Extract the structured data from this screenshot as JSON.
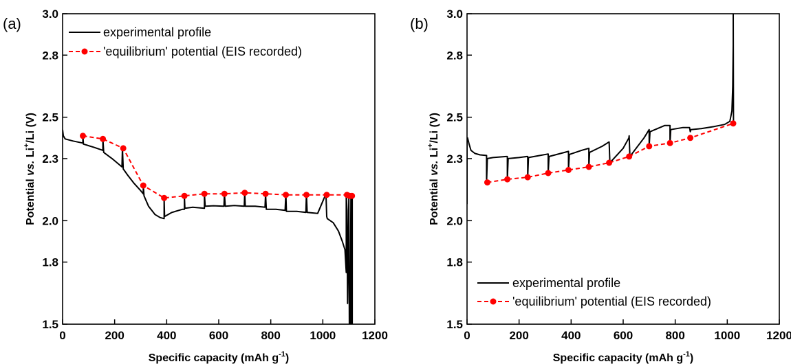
{
  "colors": {
    "experimental": "#000000",
    "equilibrium": "#ff0000",
    "axis": "#000000"
  },
  "chart_data": [
    {
      "panel": "(a)",
      "type": "line",
      "xlabel": "Specific capacity (mAh g",
      "xlabel_sup": "-1",
      "xlabel_end": ")",
      "ylabel_parts": [
        "Potential ",
        "vs.",
        " Li",
        "+",
        "/Li (V)"
      ],
      "xlim": [
        0,
        1200
      ],
      "ylim": [
        1.5,
        3.0
      ],
      "xticks": [
        0,
        200,
        400,
        600,
        800,
        1000,
        1200
      ],
      "yticks": [
        1.5,
        1.8,
        2.0,
        2.3,
        2.5,
        2.8,
        3.0
      ],
      "ytick_labels": [
        "1.5",
        "1.8",
        "2.0",
        "2.3",
        "2.5",
        "2.8",
        "3.0"
      ],
      "legend": {
        "position": "top-left"
      },
      "series": [
        {
          "name": "experimental profile",
          "style": "solid",
          "x": [
            0,
            3,
            10,
            40,
            78,
            78,
            80,
            120,
            155,
            155,
            158,
            190,
            228,
            230,
            233,
            250,
            275,
            300,
            310,
            310,
            313,
            330,
            355,
            375,
            390,
            390,
            392,
            420,
            460,
            468,
            468,
            470,
            500,
            545,
            545,
            548,
            580,
            620,
            622,
            625,
            660,
            698,
            700,
            702,
            740,
            778,
            780,
            783,
            820,
            855,
            858,
            860,
            900,
            935,
            937,
            940,
            980,
            1012,
            1015,
            1017,
            1040,
            1060,
            1075,
            1085,
            1090,
            1090,
            1093,
            1095,
            1100,
            1102,
            1104,
            1105,
            1108,
            1110,
            1112,
            1113,
            1113
          ],
          "y": [
            2.44,
            2.41,
            2.395,
            2.385,
            2.375,
            2.41,
            2.37,
            2.355,
            2.34,
            2.395,
            2.33,
            2.3,
            2.26,
            2.35,
            2.25,
            2.22,
            2.18,
            2.145,
            2.13,
            2.17,
            2.12,
            2.07,
            2.03,
            2.015,
            2.01,
            2.11,
            2.02,
            2.04,
            2.055,
            2.055,
            2.12,
            2.06,
            2.065,
            2.06,
            2.13,
            2.07,
            2.072,
            2.07,
            2.13,
            2.07,
            2.073,
            2.07,
            2.135,
            2.07,
            2.07,
            2.065,
            2.13,
            2.055,
            2.055,
            2.05,
            2.13,
            2.045,
            2.045,
            2.04,
            2.13,
            2.04,
            2.035,
            2.13,
            2.02,
            2.01,
            1.99,
            1.95,
            1.9,
            1.86,
            1.75,
            2.13,
            2.05,
            1.6,
            2.12,
            1.5,
            1.5,
            1.5,
            2.12,
            1.5,
            1.5,
            2.12,
            1.5
          ]
        },
        {
          "name": "'equilibrium' potential (EIS recorded)",
          "style": "dashed-markers",
          "x": [
            78,
            155,
            233,
            310,
            390,
            468,
            545,
            622,
            700,
            780,
            858,
            937,
            1015,
            1093,
            1103,
            1112
          ],
          "y": [
            2.41,
            2.395,
            2.35,
            2.17,
            2.11,
            2.12,
            2.13,
            2.13,
            2.135,
            2.13,
            2.125,
            2.125,
            2.125,
            2.125,
            2.12,
            2.12
          ]
        }
      ]
    },
    {
      "panel": "(b)",
      "type": "line",
      "xlabel": "Specific capacity (mAh g",
      "xlabel_sup": "-1",
      "xlabel_end": ")",
      "ylabel_parts": [
        "Potential ",
        "vs.",
        " Li",
        "+",
        "/Li (V)"
      ],
      "xlim": [
        0,
        1200
      ],
      "ylim": [
        1.5,
        3.0
      ],
      "xticks": [
        0,
        200,
        400,
        600,
        800,
        1000,
        1200
      ],
      "yticks": [
        1.5,
        1.8,
        2.0,
        2.3,
        2.5,
        2.8,
        3.0
      ],
      "ytick_labels": [
        "1.5",
        "1.8",
        "2.0",
        "2.3",
        "2.5",
        "2.8",
        "3.0"
      ],
      "legend": {
        "position": "bottom-left"
      },
      "series": [
        {
          "name": "experimental profile",
          "style": "solid",
          "x": [
            0,
            0,
            2,
            8,
            15,
            30,
            50,
            75,
            75,
            78,
            100,
            150,
            155,
            155,
            158,
            200,
            230,
            233,
            233,
            236,
            280,
            310,
            312,
            312,
            315,
            360,
            390,
            390,
            393,
            440,
            468,
            468,
            471,
            520,
            545,
            546,
            549,
            600,
            622,
            623,
            626,
            680,
            700,
            700,
            703,
            760,
            780,
            780,
            783,
            830,
            855,
            858,
            860,
            900,
            950,
            990,
            1010,
            1018,
            1021,
            1023,
            1023,
            1024
          ],
          "y": [
            2.08,
            2.39,
            2.4,
            2.37,
            2.34,
            2.325,
            2.318,
            2.315,
            2.185,
            2.3,
            2.305,
            2.31,
            2.31,
            2.2,
            2.3,
            2.305,
            2.31,
            2.31,
            2.21,
            2.305,
            2.315,
            2.322,
            2.322,
            2.23,
            2.31,
            2.325,
            2.335,
            2.245,
            2.32,
            2.34,
            2.35,
            2.26,
            2.33,
            2.36,
            2.38,
            2.38,
            2.28,
            2.35,
            2.4,
            2.41,
            2.31,
            2.4,
            2.44,
            2.36,
            2.43,
            2.46,
            2.46,
            2.375,
            2.44,
            2.45,
            2.45,
            2.43,
            2.44,
            2.445,
            2.455,
            2.465,
            2.48,
            2.53,
            2.65,
            2.85,
            3.0,
            2.47
          ]
        },
        {
          "name": "'equilibrium' potential (EIS recorded)",
          "style": "dashed-markers",
          "x": [
            78,
            155,
            233,
            312,
            390,
            468,
            546,
            623,
            700,
            780,
            858,
            1023
          ],
          "y": [
            2.185,
            2.2,
            2.21,
            2.23,
            2.245,
            2.26,
            2.28,
            2.31,
            2.36,
            2.375,
            2.4,
            2.47
          ]
        }
      ]
    }
  ]
}
